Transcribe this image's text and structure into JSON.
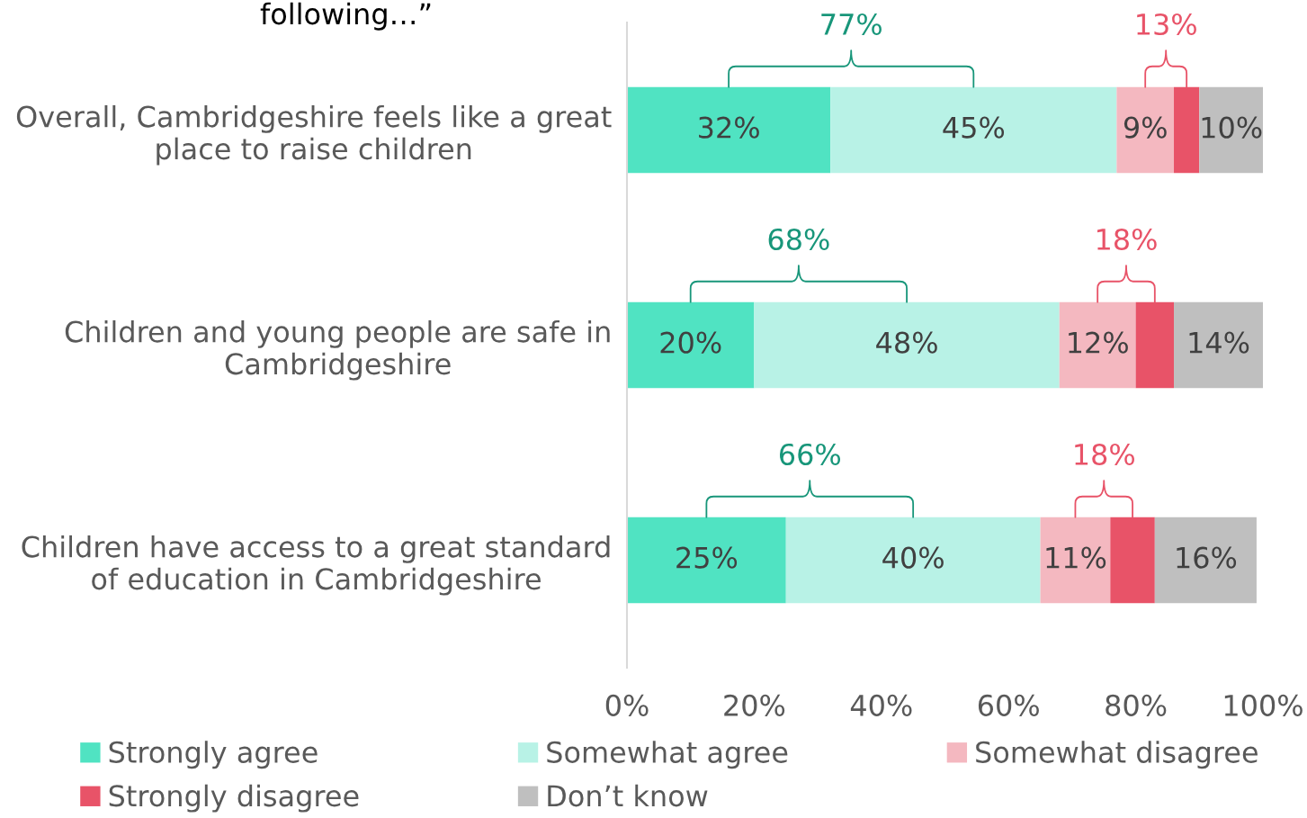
{
  "chart_data": {
    "type": "bar",
    "orientation": "horizontal",
    "stacked": true,
    "title": "following…”",
    "categories": [
      "Overall, Cambridgeshire feels like a great place to raise children",
      "Children and young people are safe in Cambridgeshire",
      "Children have access to a great standard of education in Cambridgeshire"
    ],
    "series": [
      {
        "name": "Strongly agree",
        "color": "#50e3c2",
        "values": [
          32,
          20,
          25
        ],
        "value_labels": [
          "32%",
          "20%",
          "25%"
        ]
      },
      {
        "name": "Somewhat agree",
        "color": "#b8f2e6",
        "values": [
          45,
          48,
          40
        ],
        "value_labels": [
          "45%",
          "48%",
          "40%"
        ]
      },
      {
        "name": "Somewhat disagree",
        "color": "#f4b8c0",
        "values": [
          9,
          12,
          11
        ],
        "value_labels": [
          "9%",
          "12%",
          "11%"
        ]
      },
      {
        "name": "Strongly disagree",
        "color": "#e85368",
        "values": [
          4,
          6,
          7
        ]
      },
      {
        "name": "Don’t know",
        "color": "#bfbfbf",
        "values": [
          10,
          14,
          16
        ],
        "value_labels": [
          "10%",
          "14%",
          "16%"
        ]
      }
    ],
    "xlim": [
      0,
      100
    ],
    "xticks": [
      {
        "value": 0,
        "label": "0%"
      },
      {
        "value": 20,
        "label": "20%"
      },
      {
        "value": 40,
        "label": "40%"
      },
      {
        "value": 60,
        "label": "60%"
      },
      {
        "value": 80,
        "label": "80%"
      },
      {
        "value": 100,
        "label": "100%"
      }
    ],
    "grid": false,
    "legend": "bottom",
    "annotations": [
      "77%",
      "13%",
      "68%",
      "18%",
      "66%",
      "18%"
    ]
  }
}
